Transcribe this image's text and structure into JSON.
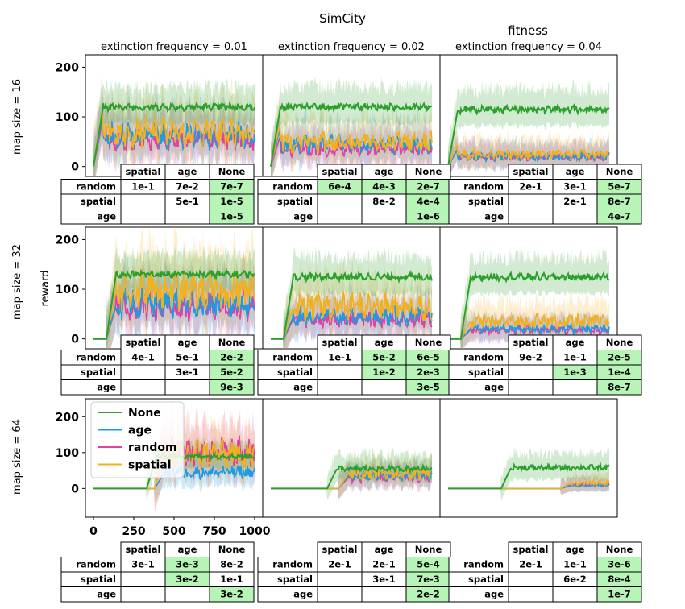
{
  "suptitle": "SimCity",
  "subtitle": "fitness",
  "col_titles": [
    "extinction frequency = 0.01",
    "extinction frequency = 0.02",
    "extinction frequency = 0.04"
  ],
  "row_labels": [
    "map size = 16",
    "map size = 32",
    "map size = 64"
  ],
  "ylabel": "reward",
  "yticks": [
    0,
    100,
    200
  ],
  "xticks": [
    0,
    250,
    500,
    750,
    1000
  ],
  "colors": {
    "None": "#2ca02c",
    "age": "#1f9be0",
    "random": "#e040a8",
    "spatial": "#f0b020"
  },
  "legend": {
    "entries": [
      "None",
      "age",
      "random",
      "spatial"
    ],
    "placement": "upper-left of bottom-left panel"
  },
  "table": {
    "headers": [
      "spatial",
      "age",
      "None"
    ],
    "rows": [
      "random",
      "spatial",
      "age"
    ]
  },
  "chart_data": [
    {
      "type": "line",
      "row": 0,
      "col": 0,
      "title": "extinction frequency = 0.01",
      "xlim": [
        0,
        1000
      ],
      "ylim": [
        -20,
        225
      ],
      "series": [
        {
          "name": "None",
          "level": 120,
          "start": 0
        },
        {
          "name": "age",
          "level": 62,
          "start": 0
        },
        {
          "name": "random",
          "level": 55,
          "start": 0
        },
        {
          "name": "spatial",
          "level": 70,
          "start": 0
        }
      ],
      "table": [
        [
          "1e-1",
          "7e-2",
          "7e-7"
        ],
        [
          "",
          "5e-1",
          "1e-5"
        ],
        [
          "",
          "",
          "1e-5"
        ]
      ],
      "highlight": [
        [
          false,
          false,
          true
        ],
        [
          false,
          false,
          true
        ],
        [
          false,
          false,
          true
        ]
      ]
    },
    {
      "type": "line",
      "row": 0,
      "col": 1,
      "title": "extinction frequency = 0.02",
      "xlim": [
        0,
        1000
      ],
      "ylim": [
        -20,
        225
      ],
      "series": [
        {
          "name": "None",
          "level": 120,
          "start": 0
        },
        {
          "name": "age",
          "level": 45,
          "start": 0
        },
        {
          "name": "random",
          "level": 35,
          "start": 0
        },
        {
          "name": "spatial",
          "level": 50,
          "start": 0
        }
      ],
      "table": [
        [
          "6e-4",
          "4e-3",
          "2e-7"
        ],
        [
          "",
          "8e-2",
          "4e-4"
        ],
        [
          "",
          "",
          "1e-6"
        ]
      ],
      "highlight": [
        [
          true,
          true,
          true
        ],
        [
          false,
          false,
          true
        ],
        [
          false,
          false,
          true
        ]
      ]
    },
    {
      "type": "line",
      "row": 0,
      "col": 2,
      "title": "extinction frequency = 0.04",
      "xlim": [
        0,
        1000
      ],
      "ylim": [
        -20,
        225
      ],
      "series": [
        {
          "name": "None",
          "level": 115,
          "start": 0
        },
        {
          "name": "age",
          "level": 20,
          "start": 0
        },
        {
          "name": "random",
          "level": 20,
          "start": 0
        },
        {
          "name": "spatial",
          "level": 25,
          "start": 0
        }
      ],
      "table": [
        [
          "2e-1",
          "3e-1",
          "5e-7"
        ],
        [
          "",
          "2e-1",
          "8e-7"
        ],
        [
          "",
          "",
          "4e-7"
        ]
      ],
      "highlight": [
        [
          false,
          false,
          true
        ],
        [
          false,
          false,
          true
        ],
        [
          false,
          false,
          true
        ]
      ]
    },
    {
      "type": "line",
      "row": 1,
      "col": 0,
      "xlim": [
        0,
        1000
      ],
      "ylim": [
        -20,
        225
      ],
      "series": [
        {
          "name": "None",
          "level": 130,
          "start": 80
        },
        {
          "name": "age",
          "level": 70,
          "start": 80
        },
        {
          "name": "random",
          "level": 65,
          "start": 80
        },
        {
          "name": "spatial",
          "level": 95,
          "start": 80
        }
      ],
      "table": [
        [
          "4e-1",
          "5e-1",
          "2e-2"
        ],
        [
          "",
          "3e-1",
          "5e-2"
        ],
        [
          "",
          "",
          "9e-3"
        ]
      ],
      "highlight": [
        [
          false,
          false,
          true
        ],
        [
          false,
          false,
          true
        ],
        [
          false,
          false,
          true
        ]
      ]
    },
    {
      "type": "line",
      "row": 1,
      "col": 1,
      "xlim": [
        0,
        1000
      ],
      "ylim": [
        -20,
        225
      ],
      "series": [
        {
          "name": "None",
          "level": 125,
          "start": 80
        },
        {
          "name": "age",
          "level": 45,
          "start": 80
        },
        {
          "name": "random",
          "level": 40,
          "start": 80
        },
        {
          "name": "spatial",
          "level": 65,
          "start": 80
        }
      ],
      "table": [
        [
          "1e-1",
          "5e-2",
          "6e-5"
        ],
        [
          "",
          "1e-2",
          "2e-3"
        ],
        [
          "",
          "",
          "3e-5"
        ]
      ],
      "highlight": [
        [
          false,
          true,
          true
        ],
        [
          false,
          true,
          true
        ],
        [
          false,
          false,
          true
        ]
      ]
    },
    {
      "type": "line",
      "row": 1,
      "col": 2,
      "xlim": [
        0,
        1000
      ],
      "ylim": [
        -20,
        225
      ],
      "series": [
        {
          "name": "None",
          "level": 125,
          "start": 80
        },
        {
          "name": "age",
          "level": 20,
          "start": 80
        },
        {
          "name": "random",
          "level": 18,
          "start": 80
        },
        {
          "name": "spatial",
          "level": 35,
          "start": 80
        }
      ],
      "table": [
        [
          "9e-2",
          "1e-1",
          "2e-5"
        ],
        [
          "",
          "1e-3",
          "1e-4"
        ],
        [
          "",
          "",
          "8e-7"
        ]
      ],
      "highlight": [
        [
          false,
          false,
          true
        ],
        [
          false,
          true,
          true
        ],
        [
          false,
          false,
          true
        ]
      ]
    },
    {
      "type": "line",
      "row": 2,
      "col": 0,
      "xlim": [
        0,
        1000
      ],
      "ylim": [
        -80,
        250
      ],
      "series": [
        {
          "name": "None",
          "level": 90,
          "start": 330
        },
        {
          "name": "age",
          "level": 45,
          "start": 380
        },
        {
          "name": "random",
          "level": 100,
          "start": 380
        },
        {
          "name": "spatial",
          "level": 95,
          "start": 380
        }
      ],
      "table": [
        [
          "3e-1",
          "3e-3",
          "8e-2"
        ],
        [
          "",
          "3e-2",
          "1e-1"
        ],
        [
          "",
          "",
          "3e-2"
        ]
      ],
      "highlight": [
        [
          false,
          true,
          false
        ],
        [
          false,
          true,
          false
        ],
        [
          false,
          false,
          true
        ]
      ]
    },
    {
      "type": "line",
      "row": 2,
      "col": 1,
      "xlim": [
        0,
        1000
      ],
      "ylim": [
        -80,
        250
      ],
      "series": [
        {
          "name": "None",
          "level": 55,
          "start": 350
        },
        {
          "name": "age",
          "level": 35,
          "start": 420
        },
        {
          "name": "random",
          "level": 30,
          "start": 420
        },
        {
          "name": "spatial",
          "level": 40,
          "start": 420
        }
      ],
      "table": [
        [
          "2e-1",
          "2e-1",
          "5e-4"
        ],
        [
          "",
          "3e-1",
          "7e-3"
        ],
        [
          "",
          "",
          "2e-2"
        ]
      ],
      "highlight": [
        [
          false,
          false,
          true
        ],
        [
          false,
          false,
          true
        ],
        [
          false,
          false,
          true
        ]
      ]
    },
    {
      "type": "line",
      "row": 2,
      "col": 2,
      "xlim": [
        0,
        1000
      ],
      "ylim": [
        -80,
        250
      ],
      "series": [
        {
          "name": "None",
          "level": 58,
          "start": 330
        },
        {
          "name": "age",
          "level": 8,
          "start": 700
        },
        {
          "name": "random",
          "level": 10,
          "start": 700
        },
        {
          "name": "spatial",
          "level": 15,
          "start": 700
        }
      ],
      "table": [
        [
          "2e-1",
          "1e-1",
          "3e-6"
        ],
        [
          "",
          "6e-2",
          "8e-4"
        ],
        [
          "",
          "",
          "1e-7"
        ]
      ],
      "highlight": [
        [
          false,
          false,
          true
        ],
        [
          false,
          false,
          true
        ],
        [
          false,
          false,
          true
        ]
      ]
    }
  ]
}
